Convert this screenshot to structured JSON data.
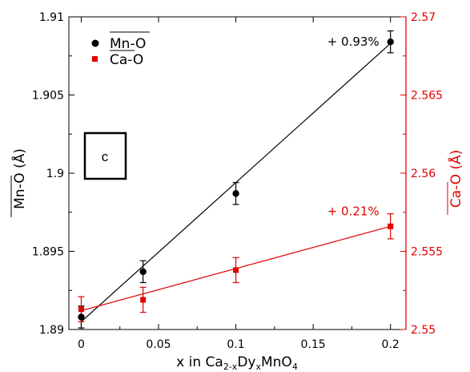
{
  "chart_data": {
    "type": "scatter",
    "panel_label": "c",
    "xlabel": {
      "pre": "x in Ca",
      "sub1": "2-x",
      "mid": "Dy",
      "sub2": "x",
      "post": "MnO",
      "sub3": "4"
    },
    "ylabel_left": "Mn-O (Å)",
    "ylabel_right": "Ca-O (Å)",
    "xlim": [
      -0.008,
      0.21
    ],
    "ylim_left": [
      1.89,
      1.91
    ],
    "ylim_right": [
      2.55,
      2.57
    ],
    "x_ticks": [
      "0",
      "0.05",
      "0.1",
      "0.15",
      "0.2"
    ],
    "y_ticks_left": [
      "1.89",
      "1.895",
      "1.9",
      "1.905",
      "1.91"
    ],
    "y_ticks_right": [
      "2.55",
      "2.555",
      "2.56",
      "2.565",
      "2.57"
    ],
    "grid": false,
    "legend_position": "top-left",
    "series": [
      {
        "name": "Mn-O",
        "axis": "left",
        "color": "#000000",
        "marker": "circle",
        "x": [
          0,
          0.04,
          0.1,
          0.2
        ],
        "y": [
          1.8908,
          1.8937,
          1.8987,
          1.9084
        ],
        "err": [
          0.0007,
          0.0007,
          0.0007,
          0.0007
        ],
        "fit": {
          "x": [
            0,
            0.2
          ],
          "y": [
            1.8905,
            1.9083
          ]
        },
        "annotation": "+ 0.93%"
      },
      {
        "name": "Ca-O",
        "axis": "right",
        "color": "#e00000",
        "marker": "square",
        "x": [
          0,
          0.04,
          0.1,
          0.2
        ],
        "y": [
          2.5513,
          2.5519,
          2.5538,
          2.5566
        ],
        "err": [
          0.0008,
          0.0008,
          0.0008,
          0.0008
        ],
        "fit": {
          "x": [
            0,
            0.2
          ],
          "y": [
            2.5512,
            2.5566
          ]
        },
        "annotation": "+ 0.21%"
      }
    ]
  }
}
